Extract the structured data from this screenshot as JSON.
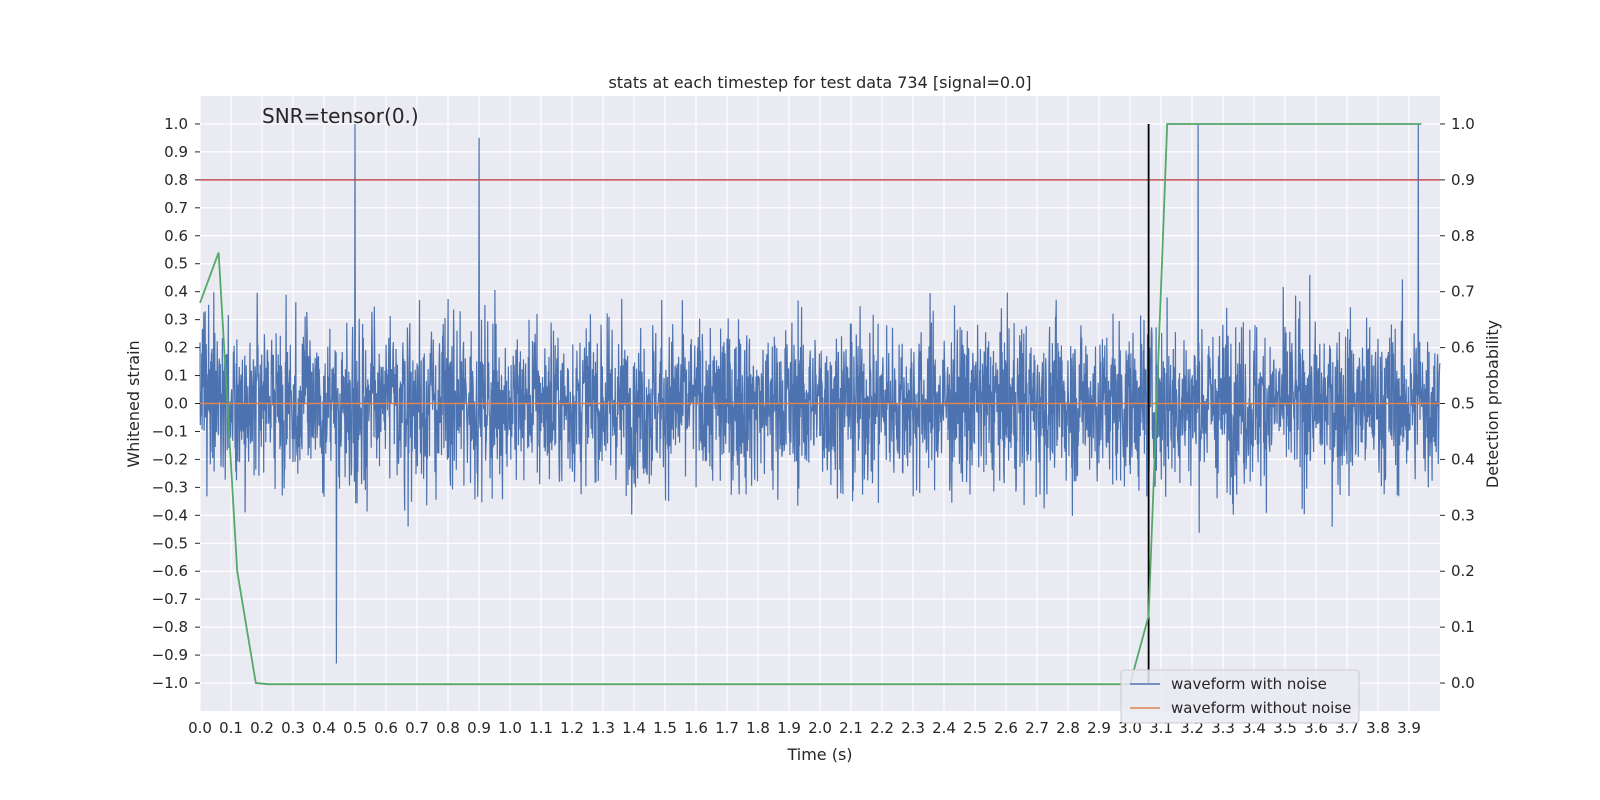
{
  "chart_data": {
    "type": "line",
    "title": "stats at each timestep for test data 734 [signal=0.0]",
    "xlabel": "Time (s)",
    "ylabel": "Whitened strain",
    "y2label": "Detection probability",
    "annotation": "SNR=tensor(0.)",
    "xlim": [
      0.0,
      4.0
    ],
    "ylim": [
      -1.1,
      1.1
    ],
    "y2lim": [
      -0.05,
      1.05
    ],
    "grid": true,
    "x_ticks": [
      "0.0",
      "0.1",
      "0.2",
      "0.3",
      "0.4",
      "0.5",
      "0.6",
      "0.7",
      "0.8",
      "0.9",
      "1.0",
      "1.1",
      "1.2",
      "1.3",
      "1.4",
      "1.5",
      "1.6",
      "1.7",
      "1.8",
      "1.9",
      "2.0",
      "2.1",
      "2.2",
      "2.3",
      "2.4",
      "2.5",
      "2.6",
      "2.7",
      "2.8",
      "2.9",
      "3.0",
      "3.1",
      "3.2",
      "3.3",
      "3.4",
      "3.5",
      "3.6",
      "3.7",
      "3.8",
      "3.9"
    ],
    "y_ticks": [
      "1.0",
      "0.9",
      "0.8",
      "0.7",
      "0.6",
      "0.5",
      "0.4",
      "0.3",
      "0.2",
      "0.1",
      "0.0",
      "−0.1",
      "−0.2",
      "−0.3",
      "−0.4",
      "−0.5",
      "−0.6",
      "−0.7",
      "−0.8",
      "−0.9",
      "−1.0"
    ],
    "y2_ticks": [
      "1.0",
      "0.9",
      "0.8",
      "0.7",
      "0.6",
      "0.5",
      "0.4",
      "0.3",
      "0.2",
      "0.1",
      "0.0"
    ],
    "legend": {
      "position": "lower-right",
      "entries": [
        {
          "label": "waveform with noise",
          "color": "#4c72b0"
        },
        {
          "label": "waveform without noise",
          "color": "#dd8452"
        }
      ]
    },
    "threshold_line": {
      "axis": "y2",
      "value": 0.9,
      "color": "#c44e52"
    },
    "event_line": {
      "x": 3.06,
      "y_from": -1.0,
      "y_to": 1.0,
      "color": "#000000"
    },
    "series": [
      {
        "name": "waveform with noise",
        "axis": "y",
        "color": "#4c72b0",
        "kind": "noise",
        "amplitude_typical": 0.45,
        "peaks": [
          {
            "x": 0.5,
            "y": 1.0
          },
          {
            "x": 0.9,
            "y": 0.95
          },
          {
            "x": 3.22,
            "y": 1.0
          },
          {
            "x": 3.93,
            "y": 1.0
          },
          {
            "x": 0.44,
            "y": -0.93
          }
        ]
      },
      {
        "name": "waveform without noise",
        "axis": "y",
        "color": "#dd8452",
        "kind": "line",
        "x": [
          0.0,
          4.0
        ],
        "y": [
          0.0,
          0.0
        ]
      },
      {
        "name": "detection probability",
        "axis": "y2",
        "color": "#55a868",
        "kind": "line",
        "x": [
          0.0,
          0.06,
          0.12,
          0.18,
          0.22,
          0.5,
          1.0,
          1.5,
          2.0,
          2.5,
          3.0,
          3.06,
          3.12,
          3.2,
          3.94
        ],
        "y": [
          0.68,
          0.77,
          0.2,
          0.0,
          -0.002,
          -0.002,
          -0.002,
          -0.002,
          -0.002,
          -0.002,
          -0.002,
          0.12,
          1.0,
          1.0,
          1.0
        ]
      }
    ]
  }
}
